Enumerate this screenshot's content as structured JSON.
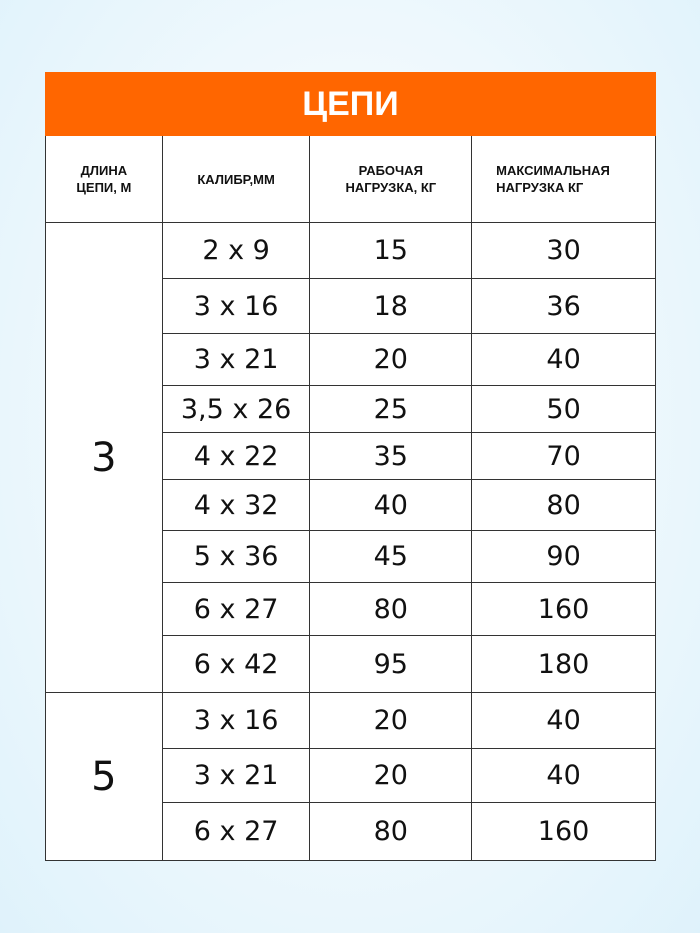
{
  "title": "ЦЕПИ",
  "columns": [
    "ДЛИНА\nЦЕПИ, М",
    "КАЛИБР,ММ",
    "РАБОЧАЯ\nНАГРУЗКА, КГ",
    "МАКСИМАЛЬНАЯ\nНАГРУЗКА КГ"
  ],
  "groups": [
    {
      "length": "3",
      "rows": [
        [
          "2 х 9",
          "15",
          "30"
        ],
        [
          "3 х 16",
          "18",
          "36"
        ],
        [
          "3 х 21",
          "20",
          "40"
        ],
        [
          "3,5 х 26",
          "25",
          "50"
        ],
        [
          "4 х 22",
          "35",
          "70"
        ],
        [
          "4 х 32",
          "40",
          "80"
        ],
        [
          "5 х 36",
          "45",
          "90"
        ],
        [
          "6 х 27",
          "80",
          "160"
        ],
        [
          "6 х 42",
          "95",
          "180"
        ]
      ]
    },
    {
      "length": "5",
      "rows": [
        [
          "3 х 16",
          "20",
          "40"
        ],
        [
          "3 х 21",
          "20",
          "40"
        ],
        [
          "6 х 27",
          "80",
          "160"
        ]
      ]
    }
  ],
  "colors": {
    "header": "#ff6600",
    "background": "#e8f6fc"
  }
}
